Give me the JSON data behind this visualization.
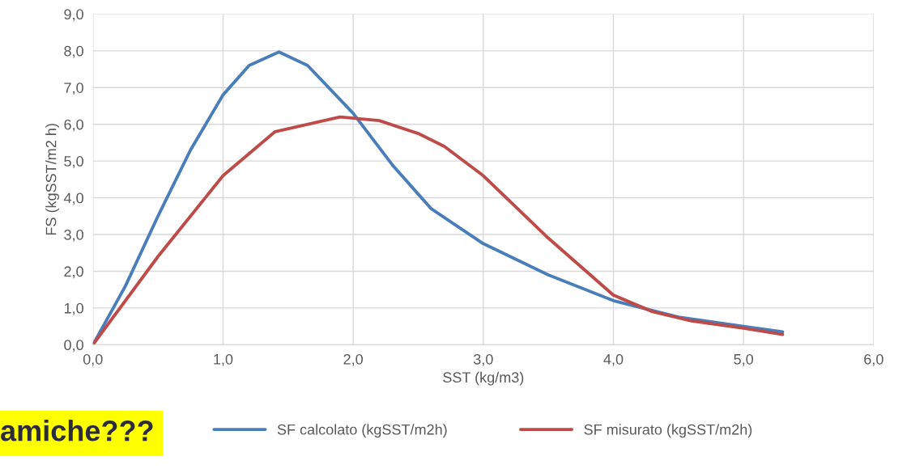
{
  "chart_data": {
    "type": "line",
    "xlabel": "SST (kg/m3)",
    "ylabel": "FS (kgSST/m2 h)",
    "xlim": [
      0,
      6
    ],
    "xticks": [
      {
        "value": 0,
        "label": "0,0"
      },
      {
        "value": 1,
        "label": "1,0"
      },
      {
        "value": 2,
        "label": "2,0"
      },
      {
        "value": 3,
        "label": "3,0"
      },
      {
        "value": 4,
        "label": "4,0"
      },
      {
        "value": 5,
        "label": "5,0"
      },
      {
        "value": 6,
        "label": "6,0"
      }
    ],
    "ylim": [
      0,
      9
    ],
    "yticks": [
      {
        "value": 0,
        "label": "0,0"
      },
      {
        "value": 1,
        "label": "1,0"
      },
      {
        "value": 2,
        "label": "2,0"
      },
      {
        "value": 3,
        "label": "3,0"
      },
      {
        "value": 4,
        "label": "4,0"
      },
      {
        "value": 5,
        "label": "5,0"
      },
      {
        "value": 6,
        "label": "6,0"
      },
      {
        "value": 7,
        "label": "7,0"
      },
      {
        "value": 8,
        "label": "8,0"
      },
      {
        "value": 9,
        "label": "9,0"
      }
    ],
    "grid": true,
    "legend": "bottom",
    "marker": "none",
    "line_style": "solid",
    "annotations": [
      "amiche???"
    ],
    "series": [
      {
        "name": "SF calcolato (kgSST/m2h)",
        "color": "#4a7ebb",
        "x": [
          0,
          0.25,
          0.5,
          0.75,
          1.0,
          1.2,
          1.43,
          1.65,
          2.0,
          2.3,
          2.6,
          3.0,
          3.5,
          4.0,
          4.5,
          5.0,
          5.3
        ],
        "values": [
          0,
          1.6,
          3.5,
          5.3,
          6.8,
          7.6,
          7.97,
          7.6,
          6.3,
          4.9,
          3.7,
          2.75,
          1.9,
          1.2,
          0.75,
          0.5,
          0.35
        ]
      },
      {
        "name": "SF misurato (kgSST/m2h)",
        "color": "#be4b48",
        "x": [
          0,
          0.5,
          1.0,
          1.4,
          1.9,
          2.2,
          2.5,
          2.7,
          3.0,
          3.5,
          4.0,
          4.3,
          4.6,
          5.0,
          5.3
        ],
        "values": [
          0,
          2.4,
          4.6,
          5.8,
          6.2,
          6.1,
          5.75,
          5.4,
          4.6,
          2.9,
          1.35,
          0.9,
          0.65,
          0.45,
          0.28
        ]
      }
    ]
  }
}
